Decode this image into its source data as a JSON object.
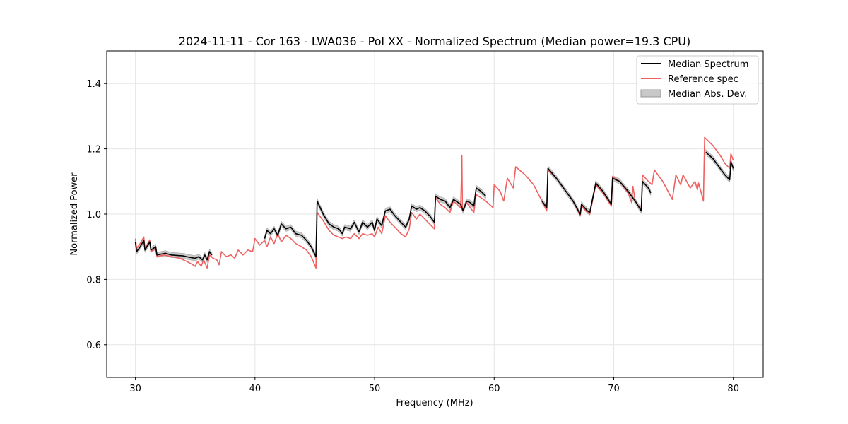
{
  "chart_data": {
    "type": "line",
    "title": "2024-11-11 - Cor 163 - LWA036 - Pol XX - Normalized Spectrum (Median power=19.3 CPU)",
    "xlabel": "Frequency (MHz)",
    "ylabel": "Normalized Power",
    "xlim": [
      27.6,
      82.5
    ],
    "ylim": [
      0.5,
      1.5
    ],
    "xticks": [
      30,
      40,
      50,
      60,
      70,
      80
    ],
    "yticks": [
      0.6,
      0.8,
      1.0,
      1.2,
      1.4
    ],
    "xtick_labels": [
      "30",
      "40",
      "50",
      "60",
      "70",
      "80"
    ],
    "ytick_labels": [
      "0.6",
      "0.8",
      "1.0",
      "1.2",
      "1.4"
    ],
    "grid": true,
    "legend_position": "top-right",
    "colors": {
      "median": "#000000",
      "reference": "#f06060",
      "mad": "#c8c8c8",
      "mad_edge": "#999999",
      "grid": "#e6e6e6"
    },
    "series": [
      {
        "name": "Median Spectrum",
        "legend_label": "Median Spectrum",
        "mad": 0.008,
        "segments": [
          [
            [
              30.0,
              0.915
            ],
            [
              30.1,
              0.885
            ],
            [
              30.4,
              0.9
            ],
            [
              30.7,
              0.92
            ],
            [
              30.8,
              0.89
            ],
            [
              31.2,
              0.915
            ],
            [
              31.3,
              0.89
            ],
            [
              31.7,
              0.9
            ],
            [
              31.8,
              0.875
            ],
            [
              32.5,
              0.88
            ],
            [
              33.0,
              0.875
            ],
            [
              34.0,
              0.872
            ],
            [
              34.5,
              0.868
            ],
            [
              35.0,
              0.865
            ],
            [
              35.3,
              0.87
            ],
            [
              35.6,
              0.86
            ],
            [
              35.8,
              0.875
            ],
            [
              36.0,
              0.86
            ],
            [
              36.2,
              0.885
            ],
            [
              36.4,
              0.875
            ]
          ],
          [
            [
              40.8,
              0.925
            ],
            [
              41.0,
              0.95
            ],
            [
              41.3,
              0.94
            ],
            [
              41.6,
              0.955
            ],
            [
              41.9,
              0.935
            ],
            [
              42.2,
              0.97
            ],
            [
              42.6,
              0.955
            ],
            [
              43.0,
              0.96
            ],
            [
              43.4,
              0.94
            ],
            [
              43.9,
              0.935
            ],
            [
              44.3,
              0.92
            ],
            [
              44.7,
              0.9
            ],
            [
              45.1,
              0.87
            ],
            [
              45.2,
              1.04
            ],
            [
              45.7,
              1.0
            ],
            [
              46.2,
              0.97
            ],
            [
              46.6,
              0.96
            ],
            [
              47.0,
              0.955
            ],
            [
              47.3,
              0.94
            ],
            [
              47.5,
              0.96
            ],
            [
              48.0,
              0.955
            ],
            [
              48.3,
              0.975
            ],
            [
              48.7,
              0.945
            ],
            [
              49.0,
              0.975
            ],
            [
              49.4,
              0.96
            ],
            [
              49.8,
              0.975
            ],
            [
              50.0,
              0.95
            ],
            [
              50.2,
              0.985
            ],
            [
              50.6,
              0.965
            ],
            [
              50.9,
              1.01
            ],
            [
              51.3,
              1.015
            ],
            [
              51.7,
              0.995
            ],
            [
              52.2,
              0.975
            ],
            [
              52.6,
              0.96
            ],
            [
              52.9,
              0.985
            ],
            [
              53.1,
              1.025
            ],
            [
              53.5,
              1.015
            ],
            [
              53.8,
              1.02
            ],
            [
              54.2,
              1.01
            ],
            [
              54.6,
              0.995
            ],
            [
              55.0,
              0.975
            ],
            [
              55.1,
              1.055
            ],
            [
              55.5,
              1.045
            ],
            [
              55.9,
              1.04
            ],
            [
              56.3,
              1.02
            ],
            [
              56.6,
              1.045
            ],
            [
              57.0,
              1.035
            ],
            [
              57.2,
              1.03
            ],
            [
              57.4,
              1.01
            ],
            [
              57.7,
              1.04
            ],
            [
              58.0,
              1.035
            ],
            [
              58.3,
              1.025
            ],
            [
              58.5,
              1.08
            ],
            [
              58.9,
              1.07
            ],
            [
              59.3,
              1.055
            ]
          ],
          [
            [
              64.0,
              1.04
            ],
            [
              64.4,
              1.02
            ],
            [
              64.5,
              1.14
            ],
            [
              65.2,
              1.11
            ],
            [
              66.0,
              1.07
            ],
            [
              66.6,
              1.04
            ],
            [
              67.2,
              1.0
            ],
            [
              67.3,
              1.03
            ],
            [
              67.8,
              1.01
            ],
            [
              68.0,
              1.005
            ],
            [
              68.5,
              1.095
            ],
            [
              69.1,
              1.07
            ],
            [
              69.8,
              1.03
            ],
            [
              69.9,
              1.11
            ],
            [
              70.5,
              1.1
            ],
            [
              71.2,
              1.07
            ],
            [
              71.8,
              1.04
            ],
            [
              72.3,
              1.01
            ],
            [
              72.4,
              1.1
            ],
            [
              72.9,
              1.08
            ],
            [
              73.1,
              1.065
            ]
          ],
          [
            [
              77.7,
              1.19
            ],
            [
              78.3,
              1.17
            ],
            [
              78.9,
              1.14
            ],
            [
              79.3,
              1.12
            ],
            [
              79.7,
              1.105
            ],
            [
              79.8,
              1.16
            ],
            [
              80.0,
              1.14
            ]
          ]
        ]
      },
      {
        "name": "Reference spec",
        "legend_label": "Reference spec",
        "segments": [
          [
            [
              30.0,
              0.925
            ],
            [
              30.1,
              0.895
            ],
            [
              30.4,
              0.91
            ],
            [
              30.7,
              0.93
            ],
            [
              30.8,
              0.895
            ],
            [
              31.2,
              0.92
            ],
            [
              31.3,
              0.885
            ],
            [
              31.7,
              0.895
            ],
            [
              31.8,
              0.87
            ],
            [
              32.4,
              0.875
            ],
            [
              33.0,
              0.87
            ],
            [
              33.7,
              0.865
            ],
            [
              34.3,
              0.855
            ],
            [
              34.8,
              0.845
            ],
            [
              35.0,
              0.84
            ],
            [
              35.2,
              0.855
            ],
            [
              35.5,
              0.84
            ],
            [
              35.7,
              0.86
            ],
            [
              36.0,
              0.835
            ],
            [
              36.2,
              0.875
            ],
            [
              36.5,
              0.865
            ],
            [
              36.8,
              0.86
            ],
            [
              37.0,
              0.845
            ],
            [
              37.2,
              0.885
            ],
            [
              37.6,
              0.87
            ],
            [
              38.0,
              0.875
            ],
            [
              38.3,
              0.865
            ],
            [
              38.6,
              0.89
            ],
            [
              39.0,
              0.875
            ],
            [
              39.4,
              0.89
            ],
            [
              39.8,
              0.885
            ],
            [
              40.0,
              0.925
            ],
            [
              40.4,
              0.905
            ],
            [
              40.8,
              0.92
            ],
            [
              41.0,
              0.9
            ],
            [
              41.3,
              0.93
            ],
            [
              41.6,
              0.91
            ],
            [
              41.9,
              0.94
            ],
            [
              42.2,
              0.915
            ],
            [
              42.6,
              0.935
            ],
            [
              43.0,
              0.925
            ],
            [
              43.4,
              0.91
            ],
            [
              43.9,
              0.9
            ],
            [
              44.3,
              0.89
            ],
            [
              44.7,
              0.87
            ],
            [
              45.1,
              0.835
            ],
            [
              45.2,
              1.005
            ],
            [
              45.7,
              0.98
            ],
            [
              46.2,
              0.95
            ],
            [
              46.6,
              0.935
            ],
            [
              47.0,
              0.93
            ],
            [
              47.3,
              0.925
            ],
            [
              47.6,
              0.93
            ],
            [
              48.0,
              0.925
            ],
            [
              48.3,
              0.94
            ],
            [
              48.7,
              0.925
            ],
            [
              49.0,
              0.94
            ],
            [
              49.4,
              0.935
            ],
            [
              49.8,
              0.94
            ],
            [
              50.0,
              0.93
            ],
            [
              50.3,
              0.96
            ],
            [
              50.6,
              0.94
            ],
            [
              50.9,
              0.995
            ],
            [
              51.3,
              0.975
            ],
            [
              51.7,
              0.96
            ],
            [
              52.2,
              0.94
            ],
            [
              52.6,
              0.93
            ],
            [
              52.9,
              0.955
            ],
            [
              53.1,
              1.005
            ],
            [
              53.5,
              0.985
            ],
            [
              53.8,
              1.0
            ],
            [
              54.2,
              0.985
            ],
            [
              54.6,
              0.97
            ],
            [
              55.0,
              0.955
            ],
            [
              55.1,
              1.05
            ],
            [
              55.5,
              1.03
            ],
            [
              55.9,
              1.02
            ],
            [
              56.3,
              1.005
            ],
            [
              56.6,
              1.04
            ],
            [
              57.0,
              1.025
            ],
            [
              57.2,
              1.02
            ],
            [
              57.3,
              1.18
            ],
            [
              57.35,
              1.01
            ],
            [
              57.7,
              1.035
            ],
            [
              58.0,
              1.02
            ],
            [
              58.3,
              1.005
            ],
            [
              58.5,
              1.06
            ],
            [
              58.9,
              1.05
            ],
            [
              59.3,
              1.04
            ],
            [
              59.6,
              1.03
            ],
            [
              59.9,
              1.02
            ],
            [
              60.0,
              1.09
            ],
            [
              60.5,
              1.07
            ],
            [
              60.8,
              1.04
            ],
            [
              61.1,
              1.11
            ],
            [
              61.6,
              1.08
            ],
            [
              61.8,
              1.145
            ],
            [
              62.6,
              1.12
            ],
            [
              63.3,
              1.09
            ],
            [
              64.0,
              1.04
            ],
            [
              64.4,
              1.01
            ],
            [
              64.5,
              1.135
            ],
            [
              65.2,
              1.11
            ],
            [
              66.0,
              1.07
            ],
            [
              66.6,
              1.04
            ],
            [
              67.2,
              0.995
            ],
            [
              67.3,
              1.025
            ],
            [
              67.8,
              1.005
            ],
            [
              68.0,
              1.0
            ],
            [
              68.5,
              1.09
            ],
            [
              69.1,
              1.065
            ],
            [
              69.8,
              1.025
            ],
            [
              69.9,
              1.115
            ],
            [
              70.5,
              1.1
            ],
            [
              71.2,
              1.065
            ],
            [
              71.5,
              1.035
            ],
            [
              71.6,
              1.085
            ],
            [
              71.8,
              1.04
            ],
            [
              72.3,
              1.01
            ],
            [
              72.4,
              1.12
            ],
            [
              72.9,
              1.1
            ],
            [
              73.2,
              1.09
            ],
            [
              73.4,
              1.135
            ],
            [
              74.1,
              1.1
            ],
            [
              74.9,
              1.045
            ],
            [
              75.2,
              1.12
            ],
            [
              75.6,
              1.09
            ],
            [
              75.8,
              1.12
            ],
            [
              76.4,
              1.08
            ],
            [
              76.8,
              1.1
            ],
            [
              77.0,
              1.075
            ],
            [
              77.1,
              1.095
            ],
            [
              77.5,
              1.04
            ],
            [
              77.6,
              1.235
            ],
            [
              78.3,
              1.21
            ],
            [
              78.9,
              1.18
            ],
            [
              79.3,
              1.155
            ],
            [
              79.7,
              1.14
            ],
            [
              79.8,
              1.185
            ],
            [
              80.0,
              1.165
            ]
          ]
        ]
      },
      {
        "name": "Median Abs. Dev.",
        "legend_label": "Median Abs. Dev."
      }
    ]
  }
}
